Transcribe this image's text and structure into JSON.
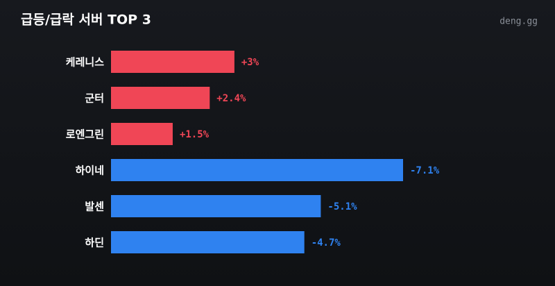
{
  "chart_data": {
    "type": "bar",
    "orientation": "horizontal",
    "title": "급등/급락 서버 TOP 3",
    "source": "deng.gg",
    "categories": [
      "케레니스",
      "군터",
      "로엔그린",
      "하이네",
      "발센",
      "하딘"
    ],
    "values": [
      3,
      2.4,
      1.5,
      -7.1,
      -5.1,
      -4.7
    ],
    "value_labels": [
      "+3%",
      "+2.4%",
      "+1.5%",
      "-7.1%",
      "-5.1%",
      "-4.7%"
    ],
    "positive_color": "#f04656",
    "negative_color": "#2f82f0"
  }
}
